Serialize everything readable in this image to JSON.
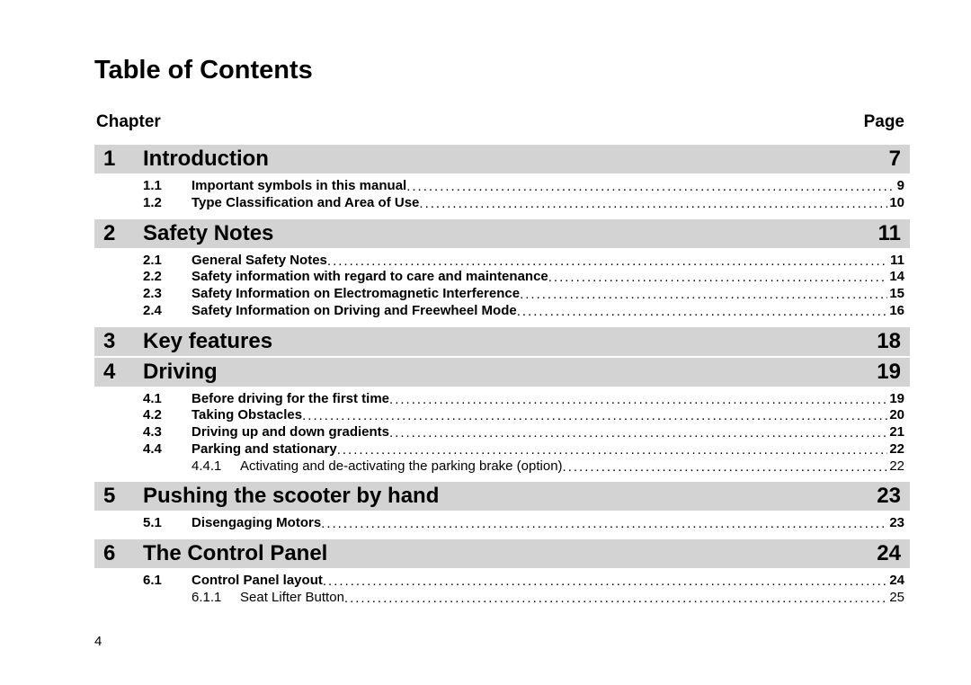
{
  "title": "Table of Contents",
  "header": {
    "left": "Chapter",
    "right": "Page"
  },
  "page_number": "4",
  "layout": {
    "chapter_bg": "#d3d3d3",
    "chapter_fontsize": 24,
    "sub_fontsize": 15,
    "title_fontsize": 29
  },
  "chapters": [
    {
      "num": "1",
      "title": "Introduction",
      "page": "7",
      "subs": [
        {
          "level": 1,
          "num": "1.1",
          "title": "Important symbols in this manual",
          "page": "9"
        },
        {
          "level": 1,
          "num": "1.2",
          "title": "Type Classification and Area of Use",
          "page": "10"
        }
      ]
    },
    {
      "num": "2",
      "title": "Safety Notes",
      "page": "11",
      "subs": [
        {
          "level": 1,
          "num": "2.1",
          "title": "General Safety Notes",
          "page": "11"
        },
        {
          "level": 1,
          "num": "2.2",
          "title": "Safety information with regard to care and maintenance",
          "page": "14"
        },
        {
          "level": 1,
          "num": "2.3",
          "title": "Safety Information on Electromagnetic Interference",
          "page": "15"
        },
        {
          "level": 1,
          "num": "2.4",
          "title": "Safety Information on Driving and Freewheel Mode",
          "page": "16"
        }
      ]
    },
    {
      "num": "3",
      "title": "Key features",
      "page": "18",
      "subs": []
    },
    {
      "num": "4",
      "title": "Driving",
      "page": "19",
      "subs": [
        {
          "level": 1,
          "num": "4.1",
          "title": "Before driving for the first time",
          "page": "19"
        },
        {
          "level": 1,
          "num": "4.2",
          "title": "Taking Obstacles",
          "page": "20"
        },
        {
          "level": 1,
          "num": "4.3",
          "title": "Driving up and down gradients",
          "page": "21"
        },
        {
          "level": 1,
          "num": "4.4",
          "title": "Parking and stationary",
          "page": "22"
        },
        {
          "level": 2,
          "num": "4.4.1",
          "title": "Activating and de-activating the parking brake (option)",
          "page": "22"
        }
      ]
    },
    {
      "num": "5",
      "title": "Pushing the scooter by hand",
      "page": "23",
      "subs": [
        {
          "level": 1,
          "num": "5.1",
          "title": "Disengaging Motors",
          "page": "23"
        }
      ]
    },
    {
      "num": "6",
      "title": "The Control Panel",
      "page": "24",
      "subs": [
        {
          "level": 1,
          "num": "6.1",
          "title": "Control Panel layout",
          "page": "24"
        },
        {
          "level": 2,
          "num": "6.1.1",
          "title": "Seat Lifter Button",
          "page": "25"
        }
      ]
    }
  ]
}
